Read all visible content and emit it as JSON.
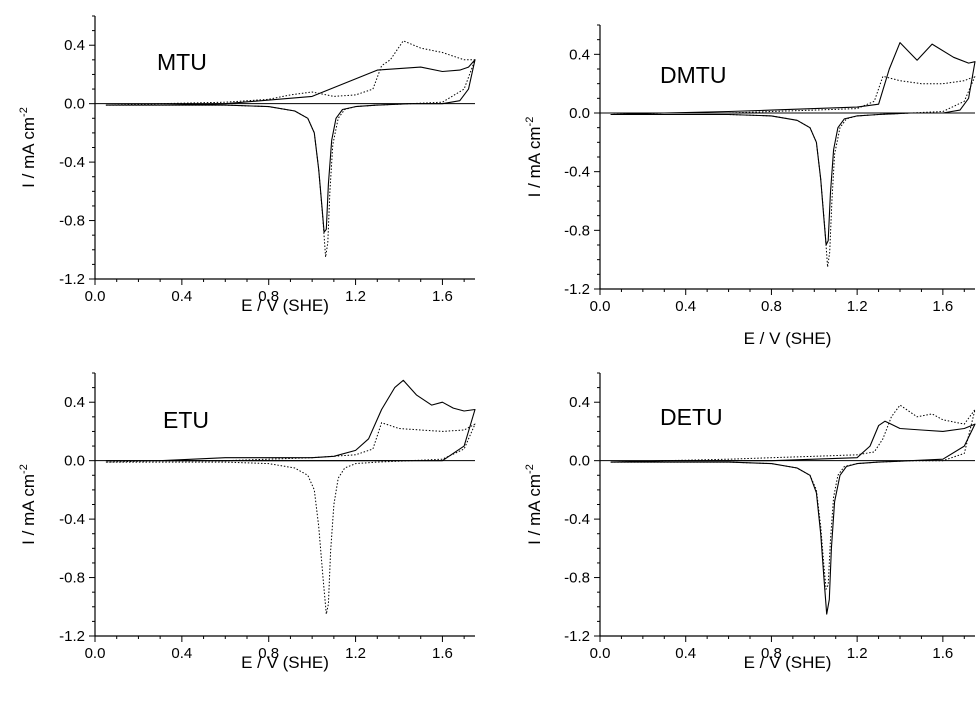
{
  "chart_data": [
    {
      "type": "line",
      "title": "MTU",
      "xlabel": "E / V (SHE)",
      "ylabel_main": "I / mA cm",
      "ylabel_sup": "-2",
      "xlim": [
        0.0,
        1.75
      ],
      "ylim": [
        -1.2,
        0.6
      ],
      "xticks": [
        0.0,
        0.4,
        0.8,
        1.2,
        1.6
      ],
      "xtick_labels": [
        "0.0",
        "0.4",
        "0.8",
        "1.2",
        "1.6"
      ],
      "yticks": [
        -1.2,
        -0.8,
        -0.4,
        0.0,
        0.4
      ],
      "ytick_labels": [
        "-1.2",
        "-0.8",
        "-0.4",
        "0.0",
        "0.4"
      ],
      "zero_line": true,
      "series": [
        {
          "style": "solid",
          "x": [
            0.05,
            0.3,
            0.6,
            0.8,
            0.92,
            0.98,
            1.01,
            1.03,
            1.045,
            1.055,
            1.065,
            1.075,
            1.09,
            1.11,
            1.14,
            1.2,
            1.3,
            1.45,
            1.6,
            1.68,
            1.72,
            1.75,
            1.75,
            1.72,
            1.68,
            1.6,
            1.5,
            1.3,
            1.0,
            0.6,
            0.3,
            0.05
          ],
          "y": [
            -0.01,
            -0.01,
            -0.01,
            -0.02,
            -0.05,
            -0.1,
            -0.2,
            -0.45,
            -0.7,
            -0.88,
            -0.86,
            -0.55,
            -0.25,
            -0.1,
            -0.04,
            -0.02,
            -0.01,
            0.0,
            0.0,
            0.02,
            0.1,
            0.3,
            0.3,
            0.25,
            0.23,
            0.22,
            0.25,
            0.23,
            0.05,
            0.0,
            -0.01,
            -0.01
          ]
        },
        {
          "style": "dotted",
          "x": [
            0.05,
            0.3,
            0.6,
            0.8,
            0.92,
            0.98,
            1.01,
            1.03,
            1.05,
            1.062,
            1.072,
            1.082,
            1.095,
            1.12,
            1.15,
            1.2,
            1.3,
            1.45,
            1.6,
            1.7,
            1.75,
            1.75,
            1.7,
            1.6,
            1.5,
            1.42,
            1.36,
            1.32,
            1.28,
            1.2,
            1.1,
            1.0,
            0.9,
            0.8,
            0.6,
            0.3,
            0.05
          ],
          "y": [
            -0.01,
            -0.01,
            -0.01,
            -0.02,
            -0.05,
            -0.1,
            -0.2,
            -0.45,
            -0.8,
            -1.05,
            -0.95,
            -0.6,
            -0.28,
            -0.1,
            -0.04,
            -0.02,
            -0.01,
            0.0,
            0.01,
            0.1,
            0.3,
            0.3,
            0.3,
            0.35,
            0.38,
            0.43,
            0.3,
            0.26,
            0.1,
            0.06,
            0.05,
            0.08,
            0.06,
            0.03,
            0.01,
            0.0,
            -0.01
          ]
        }
      ]
    },
    {
      "type": "line",
      "title": "DMTU",
      "xlabel": "E / V (SHE)",
      "ylabel_main": "I / mA cm",
      "ylabel_sup": "-2",
      "xlim": [
        0.0,
        1.75
      ],
      "ylim": [
        -1.2,
        0.6
      ],
      "xticks": [
        0.0,
        0.4,
        0.8,
        1.2,
        1.6
      ],
      "xtick_labels": [
        "0.0",
        "0.4",
        "0.8",
        "1.2",
        "1.6"
      ],
      "yticks": [
        -1.2,
        -0.8,
        -0.4,
        0.0,
        0.4
      ],
      "ytick_labels": [
        "-1.2",
        "-0.8",
        "-0.4",
        "0.0",
        "0.4"
      ],
      "zero_line": true,
      "series": [
        {
          "style": "solid",
          "x": [
            0.05,
            0.3,
            0.6,
            0.8,
            0.92,
            0.98,
            1.01,
            1.03,
            1.045,
            1.055,
            1.065,
            1.075,
            1.09,
            1.11,
            1.14,
            1.2,
            1.3,
            1.45,
            1.6,
            1.68,
            1.72,
            1.75,
            1.75,
            1.72,
            1.65,
            1.55,
            1.48,
            1.4,
            1.35,
            1.3,
            1.2,
            1.0,
            0.8,
            0.6,
            0.3,
            0.05
          ],
          "y": [
            -0.01,
            -0.01,
            -0.01,
            -0.02,
            -0.05,
            -0.1,
            -0.2,
            -0.45,
            -0.72,
            -0.9,
            -0.87,
            -0.55,
            -0.25,
            -0.1,
            -0.04,
            -0.02,
            -0.01,
            0.0,
            0.0,
            0.02,
            0.1,
            0.35,
            0.35,
            0.34,
            0.38,
            0.47,
            0.36,
            0.48,
            0.3,
            0.06,
            0.04,
            0.03,
            0.02,
            0.01,
            0.0,
            -0.01
          ]
        },
        {
          "style": "dotted",
          "x": [
            0.05,
            0.3,
            0.6,
            0.8,
            0.92,
            0.98,
            1.01,
            1.03,
            1.05,
            1.062,
            1.072,
            1.082,
            1.095,
            1.12,
            1.15,
            1.2,
            1.3,
            1.45,
            1.6,
            1.7,
            1.75,
            1.75,
            1.7,
            1.6,
            1.5,
            1.4,
            1.32,
            1.28,
            1.2,
            1.0,
            0.8,
            0.6,
            0.3,
            0.05
          ],
          "y": [
            -0.01,
            -0.01,
            -0.01,
            -0.02,
            -0.05,
            -0.1,
            -0.2,
            -0.45,
            -0.8,
            -1.05,
            -0.95,
            -0.6,
            -0.28,
            -0.1,
            -0.04,
            -0.02,
            -0.01,
            0.0,
            0.01,
            0.08,
            0.25,
            0.25,
            0.22,
            0.2,
            0.2,
            0.22,
            0.25,
            0.08,
            0.03,
            0.02,
            0.01,
            0.0,
            0.0,
            -0.01
          ]
        }
      ]
    },
    {
      "type": "line",
      "title": "ETU",
      "xlabel": "E / V (SHE)",
      "ylabel_main": "I / mA cm",
      "ylabel_sup": "-2",
      "xlim": [
        0.0,
        1.75
      ],
      "ylim": [
        -1.2,
        0.6
      ],
      "xticks": [
        0.0,
        0.4,
        0.8,
        1.2,
        1.6
      ],
      "xtick_labels": [
        "0.0",
        "0.4",
        "0.8",
        "1.2",
        "1.6"
      ],
      "yticks": [
        -1.2,
        -0.8,
        -0.4,
        0.0,
        0.4
      ],
      "ytick_labels": [
        "-1.2",
        "-0.8",
        "-0.4",
        "0.0",
        "0.4"
      ],
      "zero_line": true,
      "series": [
        {
          "style": "solid",
          "x": [
            0.05,
            0.3,
            0.6,
            0.8,
            1.0,
            1.1,
            1.2,
            1.26,
            1.32,
            1.38,
            1.42,
            1.48,
            1.55,
            1.6,
            1.65,
            1.7,
            1.75,
            1.75,
            1.7,
            1.6,
            1.4,
            1.2,
            1.0,
            0.8,
            0.6,
            0.3,
            0.05
          ],
          "y": [
            0.0,
            0.0,
            0.02,
            0.02,
            0.02,
            0.03,
            0.07,
            0.15,
            0.35,
            0.5,
            0.55,
            0.45,
            0.38,
            0.4,
            0.36,
            0.34,
            0.35,
            0.35,
            0.1,
            0.0,
            0.0,
            0.0,
            0.0,
            0.0,
            0.0,
            0.0,
            0.0
          ]
        },
        {
          "style": "dotted",
          "x": [
            0.05,
            0.3,
            0.6,
            0.8,
            0.92,
            0.98,
            1.01,
            1.03,
            1.05,
            1.065,
            1.075,
            1.085,
            1.1,
            1.12,
            1.15,
            1.2,
            1.3,
            1.45,
            1.6,
            1.7,
            1.75,
            1.75,
            1.7,
            1.6,
            1.5,
            1.4,
            1.32,
            1.28,
            1.2,
            1.0,
            0.8,
            0.6,
            0.3,
            0.05
          ],
          "y": [
            -0.01,
            -0.01,
            -0.01,
            -0.02,
            -0.05,
            -0.1,
            -0.2,
            -0.45,
            -0.8,
            -1.05,
            -0.98,
            -0.62,
            -0.3,
            -0.12,
            -0.05,
            -0.02,
            -0.01,
            0.0,
            0.01,
            0.08,
            0.25,
            0.25,
            0.21,
            0.2,
            0.21,
            0.22,
            0.26,
            0.08,
            0.04,
            0.02,
            0.01,
            0.0,
            0.0,
            -0.01
          ]
        }
      ]
    },
    {
      "type": "line",
      "title": "DETU",
      "xlabel": "E / V (SHE)",
      "ylabel_main": "I / mA cm",
      "ylabel_sup": "-2",
      "xlim": [
        0.0,
        1.75
      ],
      "ylim": [
        -1.2,
        0.6
      ],
      "xticks": [
        0.0,
        0.4,
        0.8,
        1.2,
        1.6
      ],
      "xtick_labels": [
        "0.0",
        "0.4",
        "0.8",
        "1.2",
        "1.6"
      ],
      "yticks": [
        -1.2,
        -0.8,
        -0.4,
        0.0,
        0.4
      ],
      "ytick_labels": [
        "-1.2",
        "-0.8",
        "-0.4",
        "0.0",
        "0.4"
      ],
      "zero_line": true,
      "series": [
        {
          "style": "solid",
          "x": [
            0.05,
            0.3,
            0.6,
            0.8,
            0.92,
            0.98,
            1.01,
            1.03,
            1.045,
            1.058,
            1.07,
            1.08,
            1.095,
            1.12,
            1.15,
            1.2,
            1.3,
            1.45,
            1.6,
            1.7,
            1.75,
            1.75,
            1.7,
            1.6,
            1.5,
            1.4,
            1.33,
            1.3,
            1.26,
            1.2,
            1.0,
            0.8,
            0.6,
            0.3,
            0.05
          ],
          "y": [
            -0.01,
            -0.01,
            -0.01,
            -0.02,
            -0.05,
            -0.1,
            -0.22,
            -0.5,
            -0.8,
            -1.05,
            -0.95,
            -0.6,
            -0.28,
            -0.1,
            -0.04,
            -0.02,
            -0.01,
            0.0,
            0.01,
            0.1,
            0.25,
            0.25,
            0.22,
            0.2,
            0.21,
            0.22,
            0.27,
            0.24,
            0.1,
            0.02,
            0.01,
            0.0,
            0.0,
            0.0,
            -0.01
          ]
        },
        {
          "style": "dotted",
          "x": [
            0.05,
            0.3,
            0.6,
            0.8,
            0.92,
            0.98,
            1.01,
            1.03,
            1.045,
            1.055,
            1.065,
            1.075,
            1.09,
            1.11,
            1.14,
            1.2,
            1.3,
            1.45,
            1.6,
            1.7,
            1.75,
            1.75,
            1.7,
            1.6,
            1.55,
            1.48,
            1.4,
            1.36,
            1.32,
            1.28,
            1.2,
            1.0,
            0.8,
            0.6,
            0.3,
            0.05
          ],
          "y": [
            -0.01,
            -0.01,
            -0.01,
            -0.02,
            -0.05,
            -0.1,
            -0.2,
            -0.45,
            -0.72,
            -0.88,
            -0.85,
            -0.55,
            -0.25,
            -0.1,
            -0.04,
            -0.02,
            -0.01,
            0.0,
            0.0,
            0.05,
            0.35,
            0.35,
            0.25,
            0.28,
            0.32,
            0.3,
            0.38,
            0.3,
            0.15,
            0.06,
            0.04,
            0.03,
            0.02,
            0.01,
            0.0,
            -0.01
          ]
        }
      ]
    }
  ]
}
